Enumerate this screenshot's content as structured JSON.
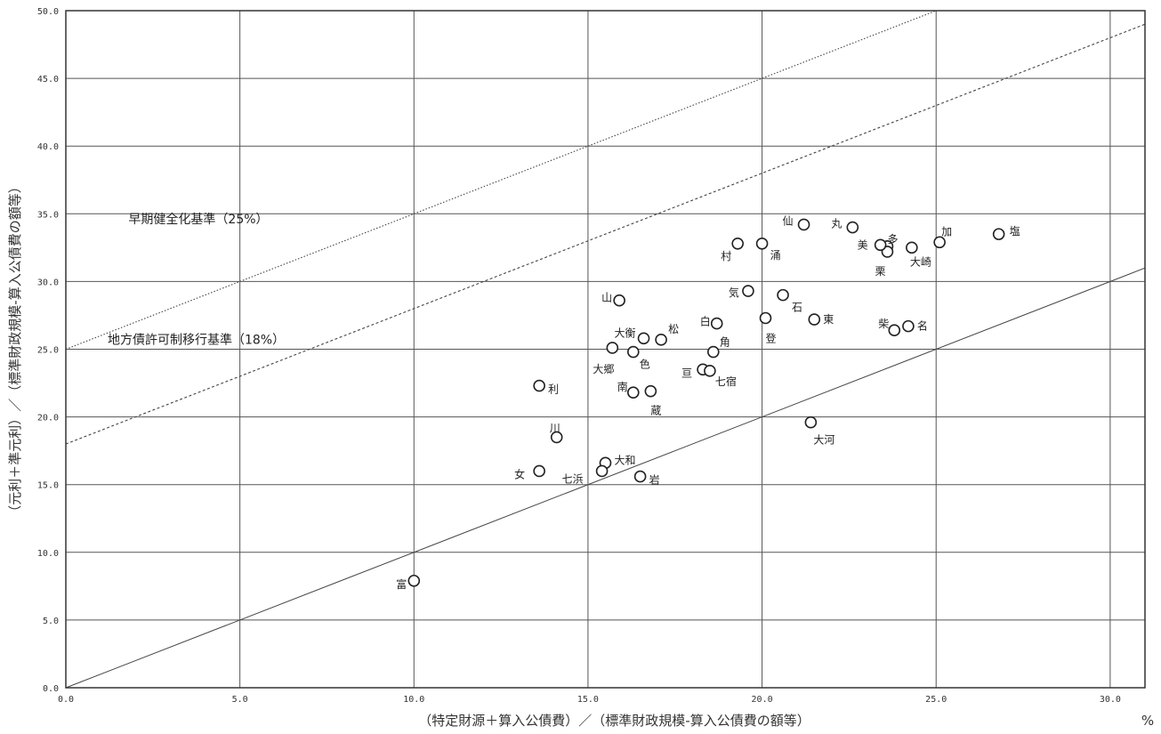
{
  "chart_data": {
    "type": "scatter",
    "title": "",
    "xlabel": "（特定財源＋算入公債費）／（標準財政規模-算入公債費の額等）",
    "ylabel": "（元利＋準元利）／（標準財政規模-算入公債費の額等）",
    "x_unit": "%",
    "xlim": [
      0,
      31
    ],
    "ylim": [
      0,
      50
    ],
    "x_ticks": [
      "0.0",
      "5.0",
      "10.0",
      "15.0",
      "20.0",
      "25.0",
      "30.0"
    ],
    "y_ticks": [
      "0.0",
      "5.0",
      "10.0",
      "15.0",
      "20.0",
      "25.0",
      "30.0",
      "35.0",
      "40.0",
      "45.0",
      "50.0"
    ],
    "grid": true,
    "reference_lines": [
      {
        "label": "早期健全化基準（25%）",
        "intercept": 25,
        "slope": 1,
        "style": "dotted"
      },
      {
        "label": "地方債許可制移行基準（18%）",
        "intercept": 18,
        "slope": 1,
        "style": "dashed"
      },
      {
        "label": "",
        "intercept": 0,
        "slope": 1,
        "style": "solid"
      }
    ],
    "points": [
      {
        "label": "塩",
        "x": 26.8,
        "y": 33.5
      },
      {
        "label": "加",
        "x": 25.1,
        "y": 32.9
      },
      {
        "label": "大崎",
        "x": 24.3,
        "y": 32.5
      },
      {
        "label": "多",
        "x": 23.6,
        "y": 32.6
      },
      {
        "label": "栗",
        "x": 23.6,
        "y": 32.2
      },
      {
        "label": "美",
        "x": 23.4,
        "y": 32.7
      },
      {
        "label": "丸",
        "x": 22.6,
        "y": 34.0
      },
      {
        "label": "仙",
        "x": 21.2,
        "y": 34.2
      },
      {
        "label": "涌",
        "x": 20.0,
        "y": 32.8
      },
      {
        "label": "村",
        "x": 19.3,
        "y": 32.8
      },
      {
        "label": "気",
        "x": 19.6,
        "y": 29.3
      },
      {
        "label": "石",
        "x": 20.6,
        "y": 29.0
      },
      {
        "label": "山",
        "x": 15.9,
        "y": 28.6
      },
      {
        "label": "白",
        "x": 18.7,
        "y": 26.9
      },
      {
        "label": "登",
        "x": 20.1,
        "y": 27.3
      },
      {
        "label": "東",
        "x": 21.5,
        "y": 27.2
      },
      {
        "label": "柴",
        "x": 23.8,
        "y": 26.4
      },
      {
        "label": "名",
        "x": 24.2,
        "y": 26.7
      },
      {
        "label": "大衡",
        "x": 16.6,
        "y": 25.8
      },
      {
        "label": "松",
        "x": 17.1,
        "y": 25.7
      },
      {
        "label": "大郷",
        "x": 15.7,
        "y": 25.1
      },
      {
        "label": "色",
        "x": 16.3,
        "y": 24.8
      },
      {
        "label": "角",
        "x": 18.6,
        "y": 24.8
      },
      {
        "label": "亘",
        "x": 18.3,
        "y": 23.5
      },
      {
        "label": "七宿",
        "x": 18.5,
        "y": 23.4
      },
      {
        "label": "利",
        "x": 13.6,
        "y": 22.3
      },
      {
        "label": "南",
        "x": 16.3,
        "y": 21.8
      },
      {
        "label": "蔵",
        "x": 16.8,
        "y": 21.9
      },
      {
        "label": "大河",
        "x": 21.4,
        "y": 19.6
      },
      {
        "label": "川",
        "x": 14.1,
        "y": 18.5
      },
      {
        "label": "大和",
        "x": 15.5,
        "y": 16.6
      },
      {
        "label": "七浜",
        "x": 15.4,
        "y": 16.0
      },
      {
        "label": "岩",
        "x": 16.5,
        "y": 15.6
      },
      {
        "label": "女",
        "x": 13.6,
        "y": 16.0
      },
      {
        "label": "富",
        "x": 10.0,
        "y": 7.9
      }
    ]
  }
}
